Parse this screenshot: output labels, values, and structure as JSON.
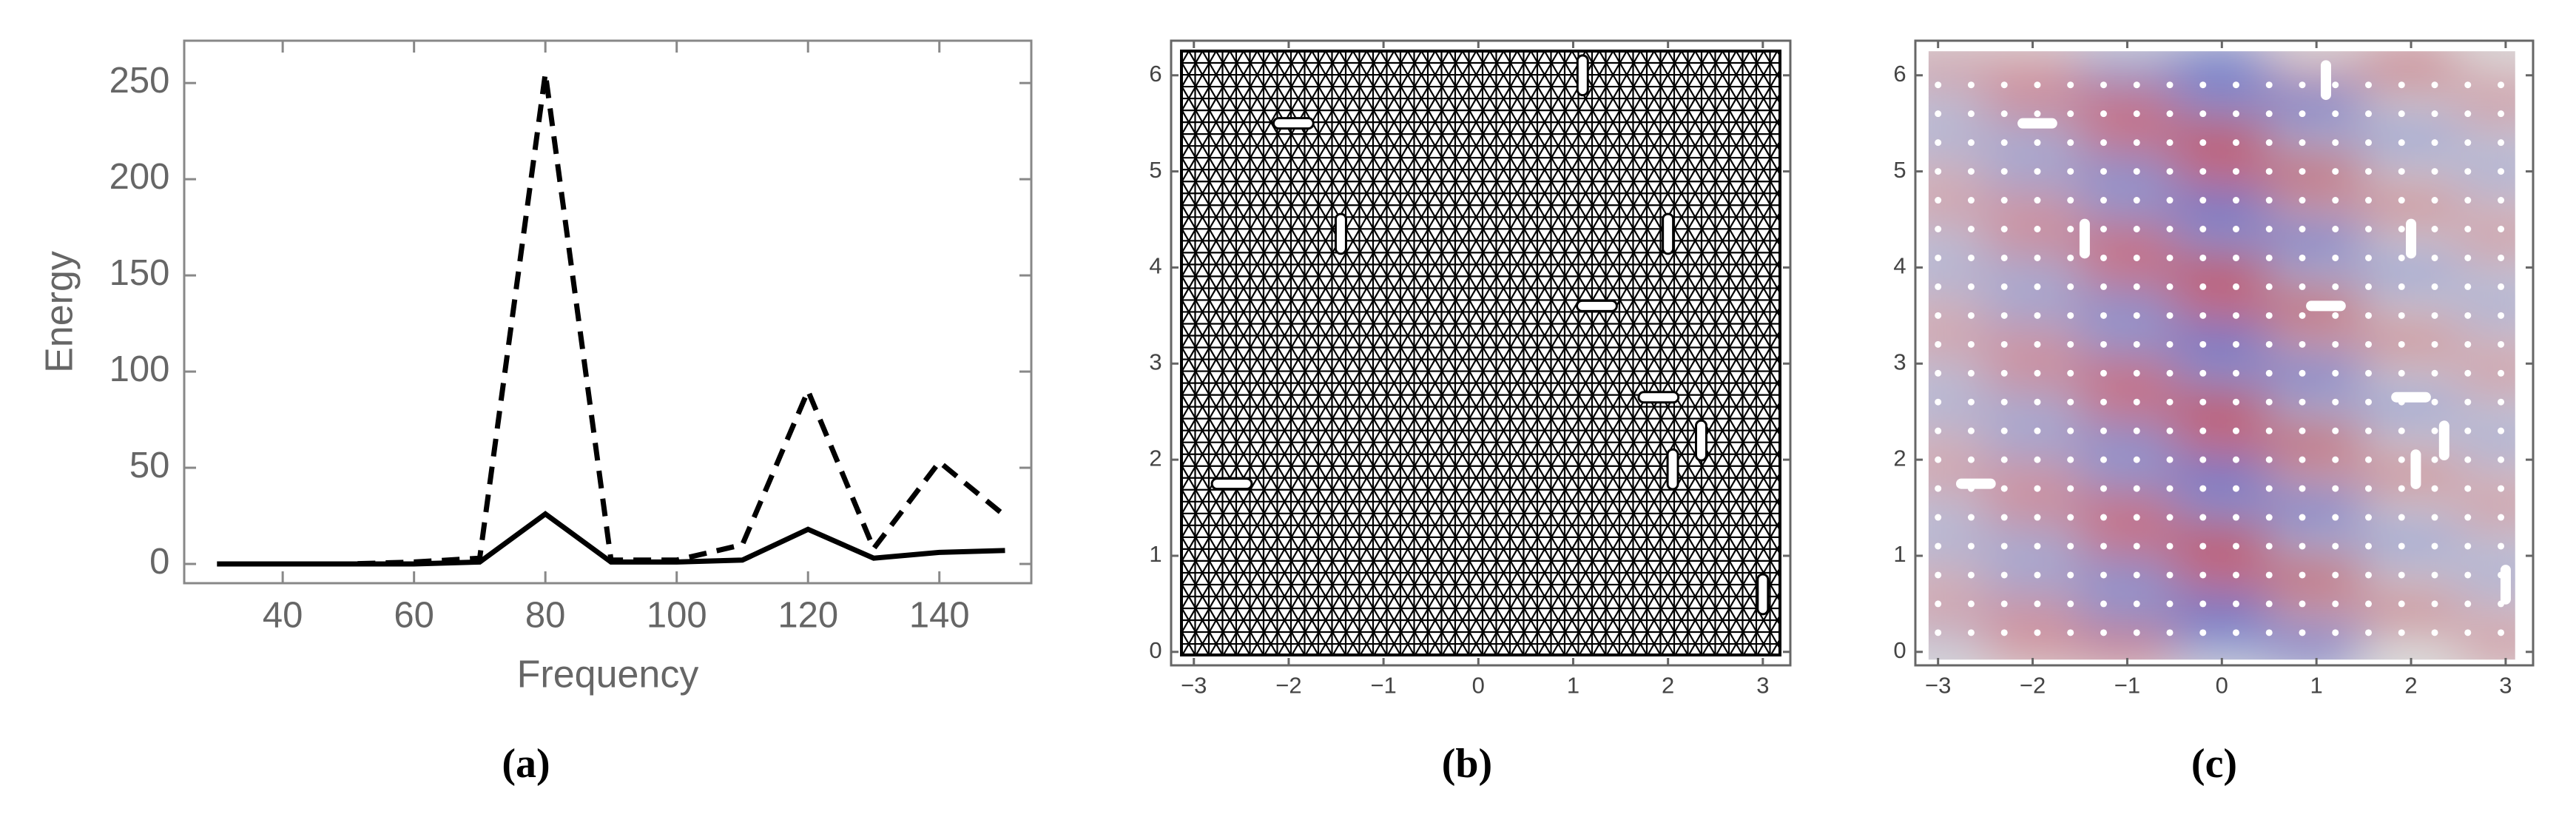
{
  "chart_data": [
    {
      "type": "line",
      "caption": "(a)",
      "xlabel": "Frequency",
      "ylabel": "Energy",
      "x": [
        30,
        40,
        50,
        60,
        70,
        80,
        90,
        100,
        110,
        120,
        130,
        140,
        150
      ],
      "series": [
        {
          "color": "#000000",
          "line_style": "dashed",
          "values": [
            0,
            0,
            0,
            1,
            3,
            255,
            2,
            2,
            10,
            90,
            8,
            53,
            25
          ]
        },
        {
          "color": "#000000",
          "line_style": "solid",
          "values": [
            0,
            0,
            0,
            0,
            1,
            26,
            1,
            1,
            2,
            18,
            3,
            6,
            7
          ]
        }
      ],
      "xlim": [
        25,
        154
      ],
      "ylim": [
        -10,
        272
      ],
      "xticks": [
        40,
        60,
        80,
        100,
        120,
        140
      ],
      "yticks": [
        0,
        50,
        100,
        150,
        200,
        250
      ]
    },
    {
      "type": "mesh",
      "caption": "(b)",
      "slots": {
        "x": [
          -1.95,
          -1.45,
          1.1,
          2.0,
          1.25,
          1.9,
          2.35,
          2.05,
          -2.6,
          3.0
        ],
        "y": [
          5.5,
          4.35,
          6.0,
          4.35,
          3.6,
          2.65,
          2.2,
          1.9,
          1.75,
          0.6
        ],
        "orientation": [
          "horizontal",
          "vertical",
          "vertical",
          "vertical",
          "horizontal",
          "horizontal",
          "vertical",
          "vertical",
          "horizontal",
          "vertical"
        ]
      },
      "xlim": [
        -3.24,
        3.29
      ],
      "ylim": [
        -0.14,
        6.36
      ],
      "xticks": [
        {
          "value": -3,
          "label": "−3"
        },
        {
          "value": -2,
          "label": "−2"
        },
        {
          "value": -1,
          "label": "−1"
        },
        0,
        1,
        2,
        3
      ],
      "yticks": [
        0,
        1,
        2,
        3,
        4,
        5,
        6
      ]
    },
    {
      "type": "heatmap",
      "caption": "(c)",
      "colormap": [
        "#3b4cc0",
        "#dcdcdc",
        "#b40426"
      ],
      "x": [
        -3,
        -2,
        -1,
        0,
        1,
        2,
        3
      ],
      "y": [
        0.1,
        0.45,
        0.8,
        1.15,
        1.5,
        1.85,
        2.2,
        2.55,
        2.9,
        3.25,
        3.6,
        3.95,
        4.3,
        4.65,
        5.0,
        5.35,
        5.7,
        6.05
      ],
      "z": [
        [
          -0.15,
          0.39,
          0.55,
          -0.41,
          -0.83,
          0,
          0.39
        ],
        [
          0.32,
          0.31,
          -0.44,
          -0.86,
          0.19,
          0.6,
          0.09
        ],
        [
          0.15,
          -0.39,
          -0.55,
          0.41,
          0.83,
          0,
          -0.39
        ],
        [
          -0.32,
          -0.31,
          0.44,
          0.86,
          -0.19,
          -0.6,
          -0.09
        ],
        [
          -0.15,
          0.39,
          0.55,
          -0.41,
          -0.83,
          0,
          0.39
        ],
        [
          0.32,
          0.31,
          -0.44,
          -0.86,
          0.19,
          0.6,
          0.09
        ],
        [
          0.15,
          -0.39,
          -0.55,
          0.41,
          0.83,
          0,
          -0.39
        ],
        [
          -0.32,
          -0.31,
          0.44,
          0.86,
          -0.19,
          -0.6,
          -0.09
        ],
        [
          -0.15,
          0.39,
          0.55,
          -0.41,
          -0.83,
          0,
          0.39
        ],
        [
          0.32,
          0.31,
          -0.44,
          -0.86,
          0.19,
          0.6,
          0.09
        ],
        [
          0.15,
          -0.39,
          -0.55,
          0.41,
          0.83,
          0,
          -0.39
        ],
        [
          -0.32,
          -0.31,
          0.44,
          0.86,
          -0.19,
          -0.6,
          -0.09
        ],
        [
          -0.15,
          0.39,
          0.55,
          -0.41,
          -0.83,
          0,
          0.39
        ],
        [
          0.32,
          0.31,
          -0.44,
          -0.86,
          0.19,
          0.6,
          0.09
        ],
        [
          0.15,
          -0.39,
          -0.55,
          0.41,
          0.83,
          0,
          -0.39
        ],
        [
          -0.32,
          -0.31,
          0.44,
          0.86,
          -0.19,
          -0.6,
          -0.09
        ],
        [
          -0.15,
          0.39,
          0.55,
          -0.41,
          -0.83,
          0,
          0.39
        ],
        [
          0.32,
          0.31,
          -0.44,
          -0.86,
          0.19,
          0.6,
          0.09
        ]
      ],
      "slots": {
        "x": [
          -1.95,
          -1.45,
          1.1,
          2.0,
          1.1,
          2.0,
          2.35,
          2.05,
          -2.6,
          3.0
        ],
        "y": [
          5.5,
          4.3,
          5.95,
          4.3,
          3.6,
          2.65,
          2.2,
          1.9,
          1.75,
          0.7
        ],
        "orientation": [
          "horizontal",
          "vertical",
          "vertical",
          "vertical",
          "horizontal",
          "horizontal",
          "vertical",
          "vertical",
          "horizontal",
          "vertical"
        ]
      },
      "xlim": [
        -3.24,
        3.29
      ],
      "ylim": [
        -0.14,
        6.36
      ],
      "xticks": [
        {
          "value": -3,
          "label": "−3"
        },
        {
          "value": -2,
          "label": "−2"
        },
        {
          "value": -1,
          "label": "−1"
        },
        0,
        1,
        2,
        3
      ],
      "yticks": [
        0,
        1,
        2,
        3,
        4,
        5,
        6
      ]
    }
  ]
}
